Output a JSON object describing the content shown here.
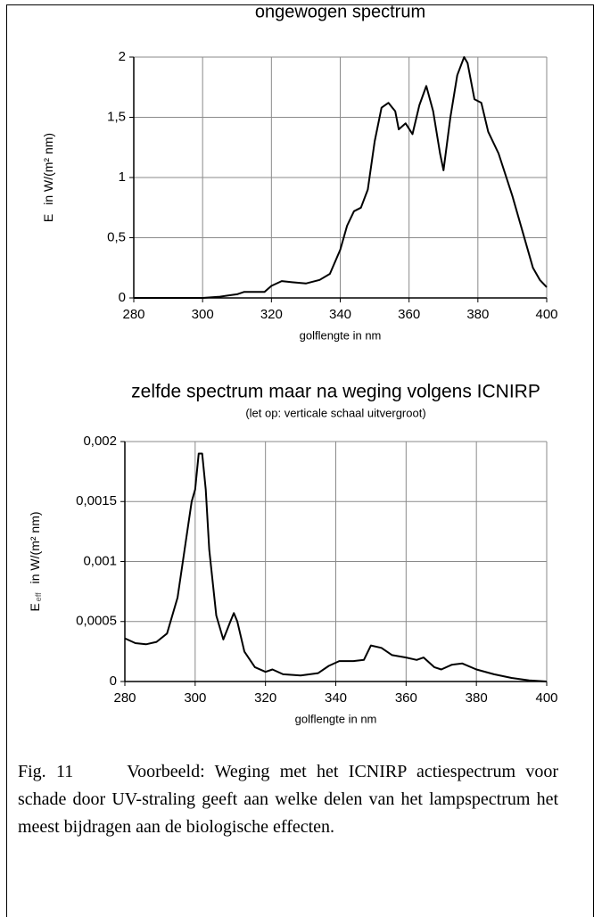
{
  "chart_data": [
    {
      "type": "line",
      "title": "ongewogen spectrum",
      "xlabel": "golflengte in nm",
      "ylabel_parts": [
        "E",
        "in W/(m² nm)"
      ],
      "x": [
        280,
        290,
        300,
        305,
        310,
        312,
        315,
        318,
        320,
        323,
        326,
        330,
        334,
        337,
        340,
        342,
        344,
        346,
        348,
        350,
        352,
        354,
        356,
        357,
        359,
        361,
        363,
        365,
        367,
        369,
        370,
        372,
        374,
        376,
        377,
        379,
        381,
        383,
        386,
        390,
        393,
        396,
        398,
        400
      ],
      "series": [
        {
          "color": "#000000",
          "values": [
            0,
            0,
            0,
            0.01,
            0.03,
            0.05,
            0.05,
            0.05,
            0.1,
            0.14,
            0.13,
            0.12,
            0.15,
            0.2,
            0.4,
            0.6,
            0.72,
            0.75,
            0.9,
            1.3,
            1.58,
            1.62,
            1.55,
            1.4,
            1.45,
            1.36,
            1.6,
            1.76,
            1.55,
            1.2,
            1.06,
            1.5,
            1.85,
            2.0,
            1.95,
            1.65,
            1.62,
            1.38,
            1.2,
            0.85,
            0.55,
            0.25,
            0.15,
            0.09
          ]
        }
      ],
      "xlim": [
        280,
        400
      ],
      "xticks": [
        280,
        300,
        320,
        340,
        360,
        380,
        400
      ],
      "ylim": [
        0,
        2
      ],
      "yticks": [
        0,
        {
          "value": 0.5,
          "label": "0,5"
        },
        1,
        {
          "value": 1.5,
          "label": "1,5"
        },
        2
      ],
      "grid": true
    },
    {
      "type": "line",
      "title": "zelfde spectrum maar na weging volgens ICNIRP",
      "subtitle": "(let op: verticale schaal uitvergroot)",
      "xlabel": "golflengte in nm",
      "ylabel_parts": [
        "E",
        "eff",
        "in W/(m² nm)"
      ],
      "x": [
        280,
        283,
        286,
        289,
        292,
        295,
        297,
        299,
        300,
        301,
        302,
        303,
        304,
        306,
        308,
        310,
        311,
        312,
        314,
        317,
        320,
        322,
        325,
        330,
        335,
        338,
        341,
        345,
        348,
        350,
        353,
        356,
        360,
        363,
        365,
        368,
        370,
        373,
        376,
        380,
        385,
        390,
        395,
        400
      ],
      "series": [
        {
          "color": "#000000",
          "values": [
            0.00036,
            0.00032,
            0.00031,
            0.00033,
            0.0004,
            0.0007,
            0.0011,
            0.0015,
            0.0016,
            0.0019,
            0.0019,
            0.0016,
            0.0011,
            0.00055,
            0.00035,
            0.0005,
            0.00057,
            0.0005,
            0.00025,
            0.00012,
            8e-05,
            0.0001,
            6e-05,
            5e-05,
            7e-05,
            0.00013,
            0.00017,
            0.00017,
            0.00018,
            0.0003,
            0.00028,
            0.00022,
            0.0002,
            0.00018,
            0.0002,
            0.00012,
            0.0001,
            0.00014,
            0.00015,
            0.0001,
            6e-05,
            3e-05,
            1e-05,
            0
          ]
        }
      ],
      "xlim": [
        280,
        400
      ],
      "xticks": [
        280,
        300,
        320,
        340,
        360,
        380,
        400
      ],
      "ylim": [
        0,
        0.002
      ],
      "yticks": [
        0,
        {
          "value": 0.0005,
          "label": "0,0005"
        },
        {
          "value": 0.001,
          "label": "0,001"
        },
        {
          "value": 0.0015,
          "label": "0,0015"
        },
        {
          "value": 0.002,
          "label": "0,002"
        }
      ],
      "grid": true
    }
  ],
  "caption": {
    "label": "Fig. 11",
    "text": "Voorbeeld: Weging met het ICNIRP actiespectrum voor schade door UV-straling geeft aan welke delen van het lampspectrum het meest bijdragen aan de biologische effecten."
  }
}
